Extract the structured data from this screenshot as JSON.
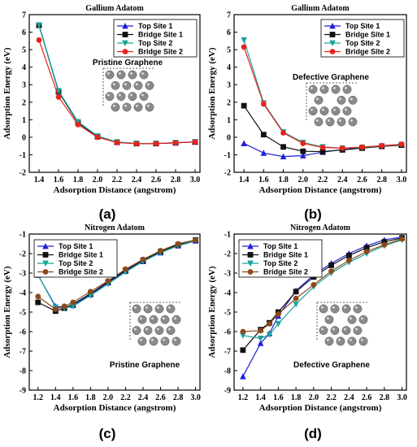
{
  "figure": {
    "panel_labels": [
      "(a)",
      "(b)",
      "(c)",
      "(d)"
    ],
    "colors": {
      "top_site_1": "#1f1fd6",
      "bridge_site_1": "#111111",
      "top_site_2": "#1aa39a",
      "bridge_site_2": "#e8231d",
      "bridge_site_2_nitrogen": "#8b4a1c",
      "atom": "#8a8a8a"
    }
  },
  "chart_data": [
    {
      "type": "line",
      "panel": "(a)",
      "title": "Gallium Adatom",
      "xlabel": "Adsorption Distance (angstrom)",
      "ylabel": "Adsorption Energy (eV)",
      "xlim": [
        1.3,
        3.05
      ],
      "ylim": [
        -2,
        7
      ],
      "xticks": [
        "1.4",
        "1.6",
        "1.8",
        "2.0",
        "2.2",
        "2.4",
        "2.6",
        "2.8",
        "3.0"
      ],
      "yticks": [
        "-2",
        "-1",
        "0",
        "1",
        "2",
        "3",
        "4",
        "5",
        "6",
        "7"
      ],
      "inset_label": "Pristine Graphene",
      "inset_defective": false,
      "legend_position": "top-right",
      "x": [
        1.4,
        1.6,
        1.8,
        2.0,
        2.2,
        2.4,
        2.6,
        2.8,
        3.0
      ],
      "series": [
        {
          "name": "Top Site 1",
          "marker": "triangle-up",
          "values": [
            6.4,
            2.65,
            0.85,
            0.05,
            -0.28,
            -0.36,
            -0.36,
            -0.32,
            -0.27
          ]
        },
        {
          "name": "Bridge Site 1",
          "marker": "square",
          "values": [
            6.4,
            2.6,
            0.82,
            0.03,
            -0.28,
            -0.36,
            -0.36,
            -0.32,
            -0.27
          ]
        },
        {
          "name": "Top Site 2",
          "marker": "triangle-down",
          "values": [
            6.4,
            2.65,
            0.88,
            0.07,
            -0.27,
            -0.35,
            -0.35,
            -0.31,
            -0.26
          ]
        },
        {
          "name": "Bridge Site 2",
          "marker": "circle",
          "values": [
            5.55,
            2.3,
            0.72,
            0.0,
            -0.3,
            -0.37,
            -0.36,
            -0.32,
            -0.27
          ]
        }
      ]
    },
    {
      "type": "line",
      "panel": "(b)",
      "title": "Gallium Adatom",
      "xlabel": "Adsorption Distance (angstrom)",
      "ylabel": "Adsorption Energy (eV)",
      "xlim": [
        1.3,
        3.05
      ],
      "ylim": [
        -2,
        7
      ],
      "xticks": [
        "1.4",
        "1.6",
        "1.8",
        "2.0",
        "2.2",
        "2.4",
        "2.6",
        "2.8",
        "3.0"
      ],
      "yticks": [
        "-2",
        "-1",
        "0",
        "1",
        "2",
        "3",
        "4",
        "5",
        "6",
        "7"
      ],
      "inset_label": "Defective Graphene",
      "inset_defective": true,
      "legend_position": "top-right",
      "x": [
        1.4,
        1.6,
        1.8,
        2.0,
        2.2,
        2.4,
        2.6,
        2.8,
        3.0
      ],
      "series": [
        {
          "name": "Top Site 1",
          "marker": "triangle-up",
          "values": [
            -0.35,
            -0.9,
            -1.1,
            -1.05,
            -0.85,
            -0.7,
            -0.6,
            -0.5,
            -0.42
          ]
        },
        {
          "name": "Bridge Site 1",
          "marker": "square",
          "values": [
            1.8,
            0.15,
            -0.55,
            -0.8,
            -0.82,
            -0.72,
            -0.62,
            -0.52,
            -0.45
          ]
        },
        {
          "name": "Top Site 2",
          "marker": "triangle-down",
          "values": [
            5.55,
            1.95,
            0.3,
            -0.3,
            -0.55,
            -0.62,
            -0.58,
            -0.5,
            -0.42
          ]
        },
        {
          "name": "Bridge Site 2",
          "marker": "circle",
          "values": [
            5.15,
            1.9,
            0.25,
            -0.35,
            -0.58,
            -0.62,
            -0.56,
            -0.48,
            -0.4
          ]
        }
      ]
    },
    {
      "type": "line",
      "panel": "(c)",
      "title": "Nitrogen Adatom",
      "xlabel": "Adsorption Distance (angstrom)",
      "ylabel": "Adsorption Energy (eV)",
      "xlim": [
        1.1,
        3.05
      ],
      "ylim": [
        -9,
        -1
      ],
      "xticks": [
        "1.2",
        "1.4",
        "1.6",
        "1.8",
        "2.0",
        "2.2",
        "2.4",
        "2.6",
        "2.8",
        "3.0"
      ],
      "yticks": [
        "-9",
        "-8",
        "-7",
        "-6",
        "-5",
        "-4",
        "-3",
        "-2",
        "-1"
      ],
      "inset_label": "Pristine Graphene",
      "inset_defective": false,
      "legend_position": "top-left",
      "x": [
        1.2,
        1.4,
        1.5,
        1.6,
        1.8,
        2.0,
        2.2,
        2.4,
        2.6,
        2.8,
        3.0
      ],
      "series": [
        {
          "name": "Top Site 1",
          "marker": "triangle-up",
          "values": [
            -3.1,
            -4.7,
            -4.75,
            -4.65,
            -4.1,
            -3.5,
            -2.9,
            -2.4,
            -1.95,
            -1.6,
            -1.35
          ]
        },
        {
          "name": "Bridge Site 1",
          "marker": "square",
          "values": [
            -4.5,
            -4.95,
            -4.8,
            -4.6,
            -4.05,
            -3.45,
            -2.85,
            -2.35,
            -1.9,
            -1.55,
            -1.3
          ]
        },
        {
          "name": "Top Site 2",
          "marker": "triangle-down",
          "values": [
            -3.1,
            -4.75,
            -4.8,
            -4.7,
            -4.15,
            -3.55,
            -2.95,
            -2.4,
            -1.95,
            -1.6,
            -1.35
          ]
        },
        {
          "name": "Bridge Site 2",
          "marker": "circle",
          "values": [
            -4.2,
            -4.85,
            -4.7,
            -4.5,
            -3.95,
            -3.4,
            -2.8,
            -2.3,
            -1.85,
            -1.5,
            -1.3
          ]
        }
      ]
    },
    {
      "type": "line",
      "panel": "(d)",
      "title": "Nitrogen Adatom",
      "xlabel": "Adsorption Distance (angstrom)",
      "ylabel": "Adsorption Energy (eV)",
      "xlim": [
        1.1,
        3.05
      ],
      "ylim": [
        -9,
        -1
      ],
      "xticks": [
        "1.2",
        "1.4",
        "1.6",
        "1.8",
        "2.0",
        "2.2",
        "2.4",
        "2.6",
        "2.8",
        "3.0"
      ],
      "yticks": [
        "-9",
        "-8",
        "-7",
        "-6",
        "-5",
        "-4",
        "-3",
        "-2",
        "-1"
      ],
      "inset_label": "Defective Graphene",
      "inset_defective": true,
      "legend_position": "top-left",
      "x": [
        1.2,
        1.4,
        1.5,
        1.6,
        1.8,
        2.0,
        2.2,
        2.4,
        2.6,
        2.8,
        3.0
      ],
      "series": [
        {
          "name": "Top Site 1",
          "marker": "triangle-up",
          "values": [
            -8.3,
            -6.6,
            -6.1,
            -5.2,
            -3.9,
            -3.1,
            -2.5,
            -2.0,
            -1.6,
            -1.3,
            -1.15
          ]
        },
        {
          "name": "Bridge Site 1",
          "marker": "square",
          "values": [
            -6.95,
            -5.9,
            -5.55,
            -5.0,
            -3.95,
            -3.2,
            -2.6,
            -2.1,
            -1.7,
            -1.4,
            -1.2
          ]
        },
        {
          "name": "Top Site 2",
          "marker": "triangle-down",
          "values": [
            -6.2,
            -6.35,
            -6.15,
            -5.6,
            -4.6,
            -3.7,
            -3.0,
            -2.45,
            -2.0,
            -1.6,
            -1.3
          ]
        },
        {
          "name": "Bridge Site 2",
          "marker": "circle",
          "values": [
            -6.0,
            -5.95,
            -5.6,
            -5.1,
            -4.3,
            -3.6,
            -2.9,
            -2.35,
            -1.9,
            -1.55,
            -1.25
          ]
        }
      ]
    }
  ]
}
